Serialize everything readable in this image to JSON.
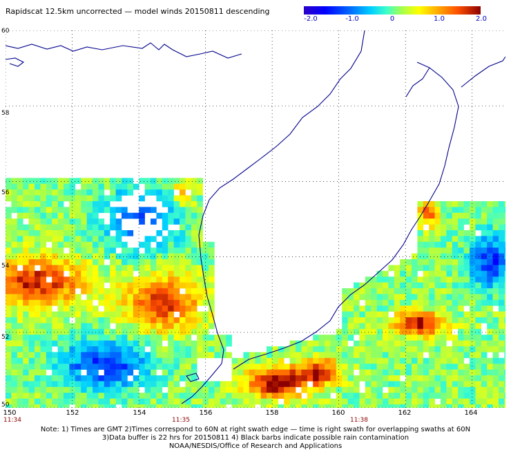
{
  "title": "Rapidscat 12.5km uncorrected — model winds 20150811 descending",
  "colorbar": {
    "labels": [
      "-2.0",
      "-1.0",
      "0",
      "1.0",
      "2.0"
    ],
    "range": [
      -2.0,
      2.0
    ],
    "colors": [
      "#2a00c8",
      "#0000ff",
      "#00d0ff",
      "#a0ff50",
      "#ffff00",
      "#ff5000",
      "#8b0000"
    ]
  },
  "map": {
    "lat_labels": [
      "60",
      "58",
      "56",
      "54",
      "52",
      "50"
    ],
    "lon_labels": [
      "150",
      "152",
      "154",
      "156",
      "158",
      "160",
      "162",
      "164"
    ],
    "lat_range": [
      50,
      60
    ],
    "lon_range": [
      150,
      165
    ],
    "coast_color": "#00008b",
    "grid": true
  },
  "times": [
    "11:34",
    "11:35",
    "11:38"
  ],
  "notes": {
    "line1": "Note: 1) Times are GMT 2)Times correspond to 60N at right swath edge — time is right swath for overlapping swaths at 60N",
    "line2": "3)Data buffer is 22 hrs for 20150811 4) Black barbs indicate possible rain contamination",
    "line3": "NOAA/NESDIS/Office of Research and Applications"
  }
}
